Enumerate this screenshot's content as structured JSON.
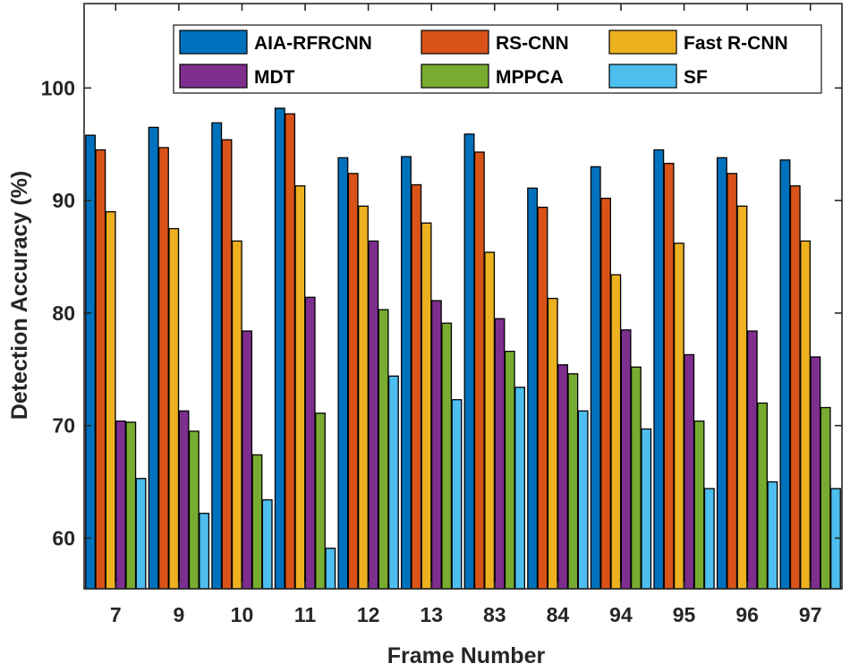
{
  "chart_data": {
    "type": "bar",
    "title": "",
    "xlabel": "Frame Number",
    "ylabel": "Detection Accuracy (%)",
    "ylim": [
      55.5,
      107.5
    ],
    "yticks": [
      60,
      70,
      80,
      90,
      100
    ],
    "grid": false,
    "legend_position": "top-right",
    "categories": [
      "7",
      "9",
      "10",
      "11",
      "12",
      "13",
      "83",
      "84",
      "94",
      "95",
      "96",
      "97"
    ],
    "series": [
      {
        "name": "AIA-RFRCNN",
        "color": "#0072BD",
        "values": [
          95.8,
          96.5,
          96.9,
          98.2,
          93.8,
          93.9,
          95.9,
          91.1,
          93.0,
          94.5,
          93.8,
          93.6
        ]
      },
      {
        "name": "RS-CNN",
        "color": "#D95319",
        "values": [
          94.5,
          94.7,
          95.4,
          97.7,
          92.4,
          91.4,
          94.3,
          89.4,
          90.2,
          93.3,
          92.4,
          91.3
        ]
      },
      {
        "name": "Fast R-CNN",
        "color": "#EDB120",
        "values": [
          89.0,
          87.5,
          86.4,
          91.3,
          89.5,
          88.0,
          85.4,
          81.3,
          83.4,
          86.2,
          89.5,
          86.4
        ]
      },
      {
        "name": "MDT",
        "color": "#7E2F8E",
        "values": [
          70.4,
          71.3,
          78.4,
          81.4,
          86.4,
          81.1,
          79.5,
          75.4,
          78.5,
          76.3,
          78.4,
          76.1
        ]
      },
      {
        "name": "MPPCA",
        "color": "#77AC30",
        "values": [
          70.3,
          69.5,
          67.4,
          71.1,
          80.3,
          79.1,
          76.6,
          74.6,
          75.2,
          70.4,
          72.0,
          71.6
        ]
      },
      {
        "name": "SF",
        "color": "#4DBEEE",
        "values": [
          65.3,
          62.2,
          63.4,
          59.1,
          74.4,
          72.3,
          73.4,
          71.3,
          69.7,
          64.4,
          65.0,
          64.4
        ]
      }
    ]
  }
}
